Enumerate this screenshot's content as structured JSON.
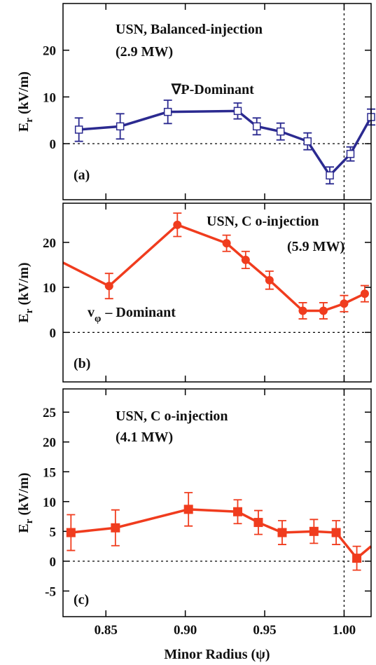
{
  "chart_data": [
    {
      "type": "line",
      "color": "#2b2a90",
      "marker": "open-square",
      "ylabel": [
        "E",
        "r",
        "(kV/m)"
      ],
      "annotations": [
        "USN, Balanced-injection",
        "(2.9 MW)",
        "∇P-Dominant",
        "(a)"
      ],
      "x": [
        0.833,
        0.859,
        0.889,
        0.933,
        0.945,
        0.96,
        0.977,
        0.991,
        1.004,
        1.017
      ],
      "values": [
        3.0,
        3.7,
        6.8,
        7.0,
        3.7,
        2.6,
        0.5,
        -6.8,
        -2.2,
        5.7
      ],
      "errors": [
        2.5,
        2.7,
        2.5,
        1.7,
        1.8,
        1.8,
        1.8,
        1.8,
        1.5,
        1.7
      ],
      "xlim": [
        0.823,
        1.017
      ],
      "ylim": [
        -12,
        30
      ],
      "yticks": [
        0,
        10,
        20
      ],
      "xticks": [
        0.85,
        0.9,
        0.95,
        1.0
      ],
      "show_xtick_labels": false,
      "hline": 0,
      "vline": 1.0
    },
    {
      "type": "line",
      "color": "#f03c1e",
      "marker": "filled-circle",
      "ylabel": [
        "E",
        "r",
        "(kV/m)"
      ],
      "annotations": [
        "USN, C o-injection",
        "(5.9 MW)",
        "v",
        "φ",
        "– Dominant",
        "(b)"
      ],
      "x": [
        0.823,
        0.852,
        0.895,
        0.926,
        0.938,
        0.953,
        0.974,
        0.987,
        1.0,
        1.013
      ],
      "values": [
        15.5,
        10.3,
        23.9,
        19.8,
        16.1,
        11.6,
        4.8,
        4.8,
        6.4,
        8.6
      ],
      "errors": [
        null,
        2.8,
        2.6,
        1.8,
        1.9,
        2.0,
        1.8,
        1.8,
        1.8,
        1.8
      ],
      "xlim": [
        0.823,
        1.017
      ],
      "ylim": [
        -11,
        28.7
      ],
      "yticks": [
        0,
        10,
        20
      ],
      "xticks": [
        0.85,
        0.9,
        0.95,
        1.0
      ],
      "show_xtick_labels": false,
      "hline": 0,
      "vline": 1.0
    },
    {
      "type": "line",
      "color": "#f03c1e",
      "marker": "filled-square",
      "ylabel": [
        "E",
        "r",
        "(kV/m)"
      ],
      "annotations": [
        "USN, C o-injection",
        "(4.1 MW)",
        "(c)"
      ],
      "xlabel": "Minor Radius (ψ)",
      "x": [
        0.828,
        0.856,
        0.902,
        0.933,
        0.946,
        0.961,
        0.981,
        0.995,
        1.008,
        1.017
      ],
      "values": [
        4.8,
        5.6,
        8.7,
        8.3,
        6.5,
        4.8,
        5.0,
        4.8,
        0.5,
        2.5
      ],
      "errors": [
        3.0,
        3.0,
        2.8,
        2.0,
        2.0,
        2.0,
        2.0,
        2.0,
        2.0,
        null
      ],
      "xlim": [
        0.823,
        1.017
      ],
      "ylim": [
        -9.3,
        28.9
      ],
      "yticks": [
        -5,
        0,
        5,
        10,
        15,
        20,
        25
      ],
      "xticks": [
        {
          "value": 0.85,
          "label": "0.85"
        },
        {
          "value": 0.9,
          "label": "0.90"
        },
        {
          "value": 0.95,
          "label": "0.95"
        },
        {
          "value": 1.0,
          "label": "1.00"
        }
      ],
      "show_xtick_labels": true,
      "hline": 0,
      "vline": 1.0
    }
  ]
}
